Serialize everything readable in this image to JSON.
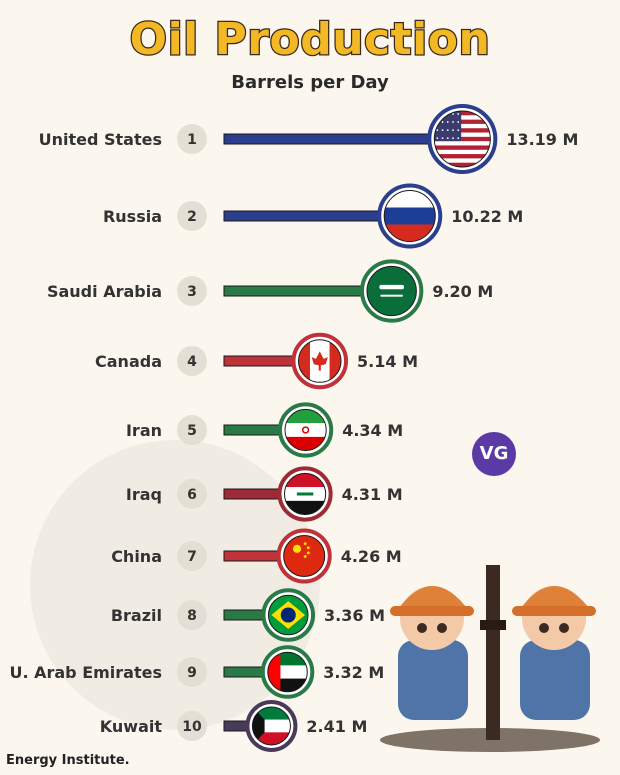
{
  "header": {
    "title": "Oil Production",
    "subtitle": "Barrels per Day"
  },
  "source": "Energy Institute.",
  "watermark_badge": "VG",
  "chart_data": {
    "type": "bar",
    "orientation": "horizontal",
    "title": "Oil Production",
    "subtitle": "Barrels per Day",
    "unit": "M",
    "categories": [
      "United States",
      "Russia",
      "Saudi Arabia",
      "Canada",
      "Iran",
      "Iraq",
      "China",
      "Brazil",
      "U. Arab Emirates",
      "Kuwait"
    ],
    "ranks": [
      1,
      2,
      3,
      4,
      5,
      6,
      7,
      8,
      9,
      10
    ],
    "values": [
      13.19,
      10.22,
      9.2,
      5.14,
      4.34,
      4.31,
      4.26,
      3.36,
      3.32,
      2.41
    ],
    "value_labels": [
      "13.19 M",
      "10.22 M",
      "9.20 M",
      "5.14 M",
      "4.34 M",
      "4.31 M",
      "4.26 M",
      "3.36 M",
      "3.32 M",
      "2.41 M"
    ],
    "flags": [
      "usa-flag-icon",
      "russia-flag-icon",
      "saudi-arabia-flag-icon",
      "canada-flag-icon",
      "iran-flag-icon",
      "iraq-flag-icon",
      "china-flag-icon",
      "brazil-flag-icon",
      "uae-flag-icon",
      "kuwait-flag-icon"
    ],
    "colors": [
      "#2c3f8f",
      "#2c3f8f",
      "#2a7a48",
      "#c0323a",
      "#2a7a48",
      "#9e2a35",
      "#c0323a",
      "#2a7a48",
      "#2a7a48",
      "#4a3a5a"
    ],
    "legend": "none",
    "grid": false
  }
}
